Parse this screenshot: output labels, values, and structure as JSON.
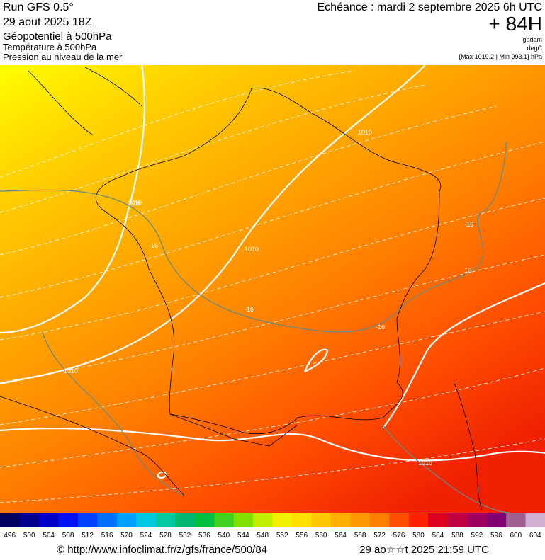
{
  "header": {
    "left": [
      "Run GFS 0.5°",
      "29 aout 2025 18Z",
      "Géopotentiel à 500hPa",
      "Température à 500hPa",
      "Pression au niveau de la mer"
    ],
    "right": {
      "title": "Echéance : mardi 2 septembre 2025 6h UTC",
      "lead": "+ 84H",
      "units": [
        "gpdam",
        "degC",
        "[Max 1019.2 | Min 993.1] hPa"
      ]
    }
  },
  "map": {
    "contour_labels": [
      "1010",
      "1010",
      "1010",
      "1010",
      "1010",
      "-16",
      "-16",
      "-16",
      "-16",
      "16",
      "-16"
    ]
  },
  "colorbar": {
    "labels": [
      496,
      500,
      504,
      508,
      512,
      516,
      520,
      524,
      528,
      532,
      536,
      540,
      544,
      548,
      552,
      556,
      560,
      564,
      568,
      572,
      576,
      580,
      584,
      588,
      592,
      596,
      600,
      604
    ],
    "colors": [
      "#000060",
      "#00008c",
      "#0000c8",
      "#0010f0",
      "#0040ff",
      "#0070ff",
      "#00a0ff",
      "#00c8e0",
      "#00c8a0",
      "#00b870",
      "#00c040",
      "#40d020",
      "#80e000",
      "#c0f000",
      "#f0f000",
      "#ffe000",
      "#ffc800",
      "#ffb000",
      "#ff9800",
      "#ff8000",
      "#ff5000",
      "#ff2000",
      "#e00020",
      "#c00040",
      "#a00060",
      "#800070",
      "#a06090",
      "#d0b0d0"
    ]
  },
  "footer": {
    "left": "© http://www.infoclimat.fr/z/gfs/france/500/84",
    "right": "29 ao☆☆t 2025 21:59 UTC"
  }
}
